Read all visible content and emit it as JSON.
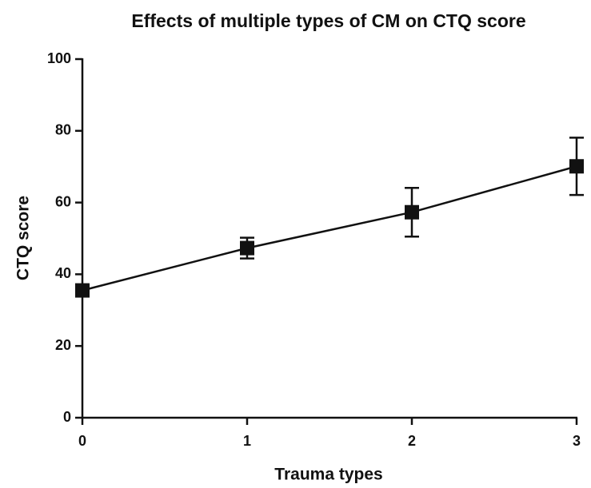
{
  "chart_data": {
    "type": "line",
    "title": "Effects of multiple types of CM on CTQ score",
    "x_label": "Trauma types",
    "y_label": "CTQ score",
    "x": [
      0,
      1,
      2,
      3
    ],
    "values": [
      35.5,
      47.3,
      57.3,
      70.1
    ],
    "errors": [
      1.5,
      2.9,
      6.8,
      8.0
    ],
    "color": "#111111",
    "xlim": [
      0,
      3
    ],
    "xticks": [
      0,
      1,
      2,
      3
    ],
    "ylim": [
      0,
      100
    ],
    "yticks": [
      0,
      20,
      40,
      60,
      80,
      100
    ],
    "grid": false
  }
}
